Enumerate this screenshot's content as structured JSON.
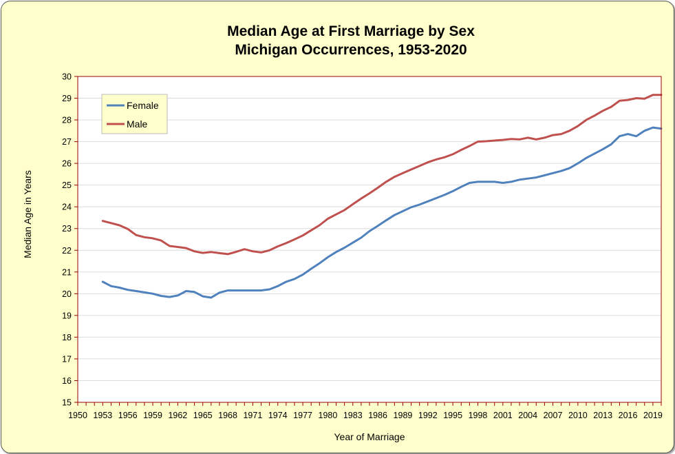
{
  "chart_data": {
    "type": "line",
    "title": "Median Age at First Marriage by Sex",
    "subtitle": "Michigan Occurrences,  1953-2020",
    "xlabel": "Year  of Marriage",
    "ylabel": "Median  Age  in Years",
    "xlim": [
      1950,
      2020
    ],
    "ylim": [
      15,
      30
    ],
    "x_ticks": [
      "1950",
      "1953",
      "1956",
      "1959",
      "1962",
      "1965",
      "1968",
      "1971",
      "1974",
      "1977",
      "1980",
      "1983",
      "1986",
      "1989",
      "1992",
      "1995",
      "1998",
      "2001",
      "2004",
      "2007",
      "2010",
      "2013",
      "2016",
      "2019"
    ],
    "y_ticks": [
      "15",
      "16",
      "17",
      "18",
      "19",
      "20",
      "21",
      "22",
      "23",
      "24",
      "25",
      "26",
      "27",
      "28",
      "29",
      "30"
    ],
    "grid": true,
    "legend_position": "top-left",
    "plot_background": "#ffffff",
    "frame_background": "#ffffcc",
    "axis_color": "#990000",
    "x": [
      1953,
      1954,
      1955,
      1956,
      1957,
      1958,
      1959,
      1960,
      1961,
      1962,
      1963,
      1964,
      1965,
      1966,
      1967,
      1968,
      1969,
      1970,
      1971,
      1972,
      1973,
      1974,
      1975,
      1976,
      1977,
      1978,
      1979,
      1980,
      1981,
      1982,
      1983,
      1984,
      1985,
      1986,
      1987,
      1988,
      1989,
      1990,
      1991,
      1992,
      1993,
      1994,
      1995,
      1996,
      1997,
      1998,
      1999,
      2000,
      2001,
      2002,
      2003,
      2004,
      2005,
      2006,
      2007,
      2008,
      2009,
      2010,
      2011,
      2012,
      2013,
      2014,
      2015,
      2016,
      2017,
      2018,
      2019,
      2020
    ],
    "series": [
      {
        "name": "Female",
        "color": "#4f81bd",
        "values": [
          20.55,
          20.35,
          20.28,
          20.18,
          20.12,
          20.06,
          20.0,
          19.9,
          19.85,
          19.92,
          20.12,
          20.08,
          19.88,
          19.82,
          20.05,
          20.15,
          20.15,
          20.15,
          20.15,
          20.15,
          20.2,
          20.35,
          20.55,
          20.68,
          20.88,
          21.15,
          21.4,
          21.68,
          21.92,
          22.12,
          22.35,
          22.58,
          22.88,
          23.12,
          23.38,
          23.62,
          23.8,
          23.98,
          24.1,
          24.25,
          24.4,
          24.55,
          24.72,
          24.92,
          25.1,
          25.15,
          25.15,
          25.15,
          25.1,
          25.15,
          25.25,
          25.3,
          25.35,
          25.45,
          25.55,
          25.65,
          25.78,
          26.0,
          26.25,
          26.45,
          26.65,
          26.88,
          27.25,
          27.35,
          27.25,
          27.5,
          27.65,
          27.6
        ]
      },
      {
        "name": "Male",
        "color": "#c0504d",
        "values": [
          23.35,
          23.25,
          23.15,
          22.98,
          22.7,
          22.6,
          22.55,
          22.45,
          22.2,
          22.15,
          22.1,
          21.95,
          21.88,
          21.92,
          21.87,
          21.82,
          21.93,
          22.05,
          21.95,
          21.9,
          22.0,
          22.18,
          22.33,
          22.5,
          22.68,
          22.92,
          23.15,
          23.45,
          23.65,
          23.85,
          24.12,
          24.38,
          24.62,
          24.88,
          25.15,
          25.38,
          25.55,
          25.72,
          25.88,
          26.05,
          26.18,
          26.28,
          26.42,
          26.62,
          26.8,
          27.0,
          27.02,
          27.05,
          27.08,
          27.12,
          27.1,
          27.18,
          27.1,
          27.18,
          27.3,
          27.35,
          27.5,
          27.72,
          28.0,
          28.2,
          28.42,
          28.6,
          28.88,
          28.92,
          29.0,
          28.98,
          29.15,
          29.15
        ]
      }
    ]
  }
}
